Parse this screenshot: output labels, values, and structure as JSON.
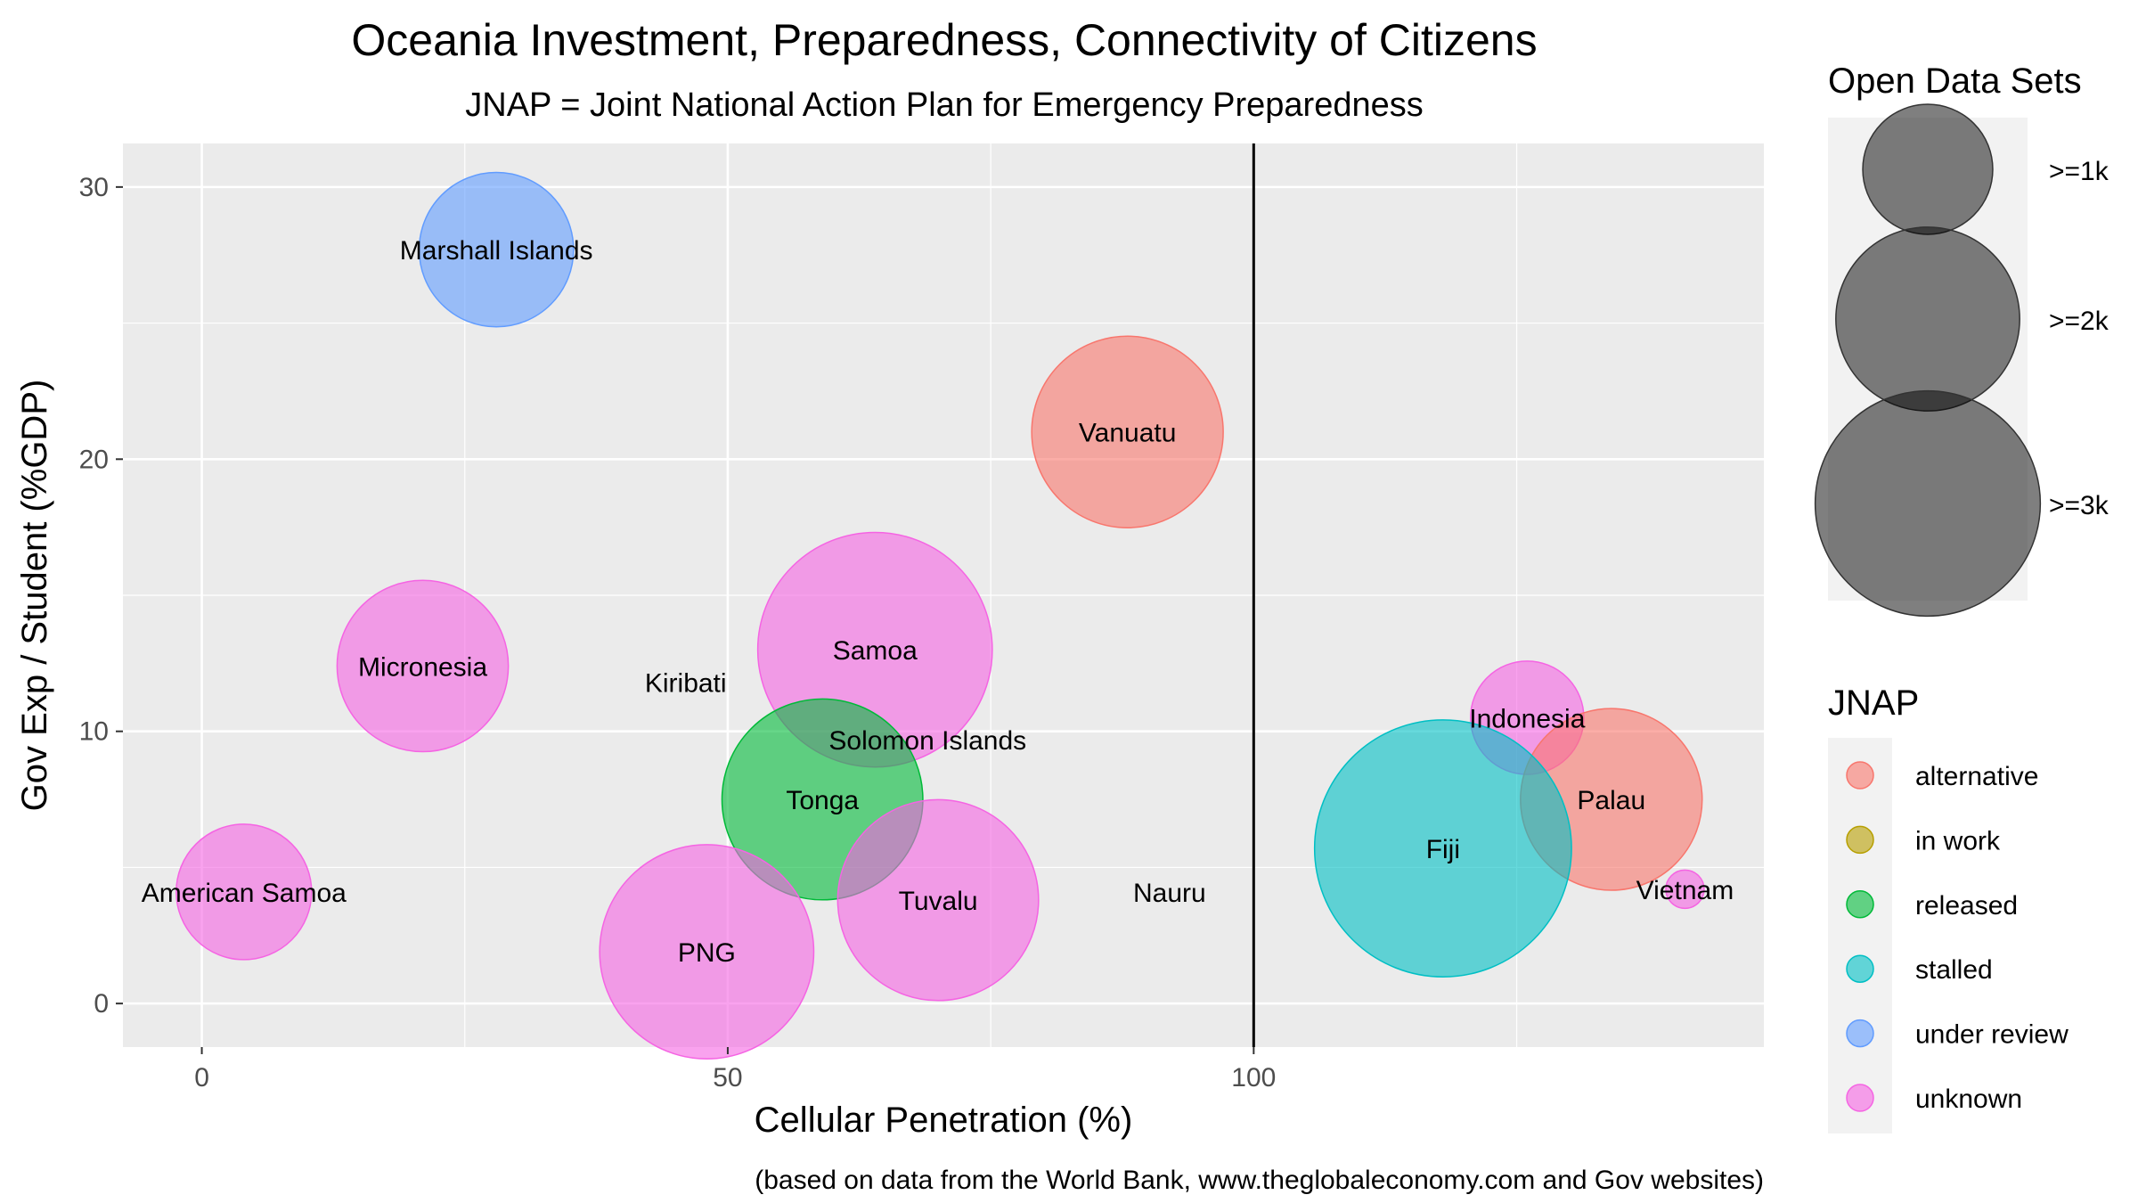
{
  "chart_data": {
    "type": "scatter",
    "title": "Oceania Investment, Preparedness, Connectivity of Citizens",
    "subtitle": "JNAP = Joint National Action Plan for Emergency Preparedness",
    "xlabel": "Cellular Penetration (%)",
    "ylabel": "Gov Exp / Student (%GDP)",
    "caption": "(based on data from the World Bank, www.theglobaleconomy.com and Gov websites)",
    "xlim": [
      -7.5,
      148.5
    ],
    "ylim": [
      -1.6,
      31.6
    ],
    "x_ticks": [
      0,
      50,
      100
    ],
    "y_ticks": [
      0,
      10,
      20,
      30
    ],
    "vline_x": 100,
    "grid": true,
    "points": [
      {
        "label": "Marshall Islands",
        "x": 28,
        "y": 27.7,
        "jnap": "under review",
        "size": 1.3
      },
      {
        "label": "Vanuatu",
        "x": 88,
        "y": 21,
        "jnap": "alternative",
        "size": 2.0
      },
      {
        "label": "Samoa",
        "x": 64,
        "y": 13,
        "jnap": "unknown",
        "size": 3.0
      },
      {
        "label": "Micronesia",
        "x": 21,
        "y": 12.4,
        "jnap": "unknown",
        "size": 1.6
      },
      {
        "label": "Kiribati",
        "x": 46,
        "y": 11.8,
        "jnap": "unknown",
        "size": 0
      },
      {
        "label": "Solomon Islands",
        "x": 69,
        "y": 9.7,
        "jnap": "unknown",
        "size": 0
      },
      {
        "label": "Indonesia",
        "x": 126,
        "y": 10.5,
        "jnap": "unknown",
        "size": 0.7
      },
      {
        "label": "Tonga",
        "x": 59,
        "y": 7.5,
        "jnap": "released",
        "size": 2.2
      },
      {
        "label": "Palau",
        "x": 134,
        "y": 7.5,
        "jnap": "alternative",
        "size": 1.8
      },
      {
        "label": "Fiji",
        "x": 118,
        "y": 5.7,
        "jnap": "stalled",
        "size": 3.6
      },
      {
        "label": "American Samoa",
        "x": 4,
        "y": 4.1,
        "jnap": "unknown",
        "size": 1.0
      },
      {
        "label": "Nauru",
        "x": 92,
        "y": 4.1,
        "jnap": "unknown",
        "size": 0
      },
      {
        "label": "Vietnam",
        "x": 141,
        "y": 4.2,
        "jnap": "unknown",
        "size": 0.08
      },
      {
        "label": "Tuvalu",
        "x": 70,
        "y": 3.8,
        "jnap": "unknown",
        "size": 2.2
      },
      {
        "label": "PNG",
        "x": 48,
        "y": 1.9,
        "jnap": "unknown",
        "size": 2.5
      }
    ]
  },
  "legend_size": {
    "title": "Open Data Sets",
    "items": [
      {
        "label": ">=1k",
        "size": 1
      },
      {
        "label": ">=2k",
        "size": 2
      },
      {
        "label": ">=3k",
        "size": 3
      }
    ]
  },
  "legend_color": {
    "title": "JNAP",
    "items": [
      {
        "label": "alternative",
        "color": "#F8766D"
      },
      {
        "label": "in work",
        "color": "#B79F00"
      },
      {
        "label": "released",
        "color": "#00BA38"
      },
      {
        "label": "stalled",
        "color": "#00BFC4"
      },
      {
        "label": "under review",
        "color": "#619CFF"
      },
      {
        "label": "unknown",
        "color": "#F564E3"
      }
    ]
  }
}
